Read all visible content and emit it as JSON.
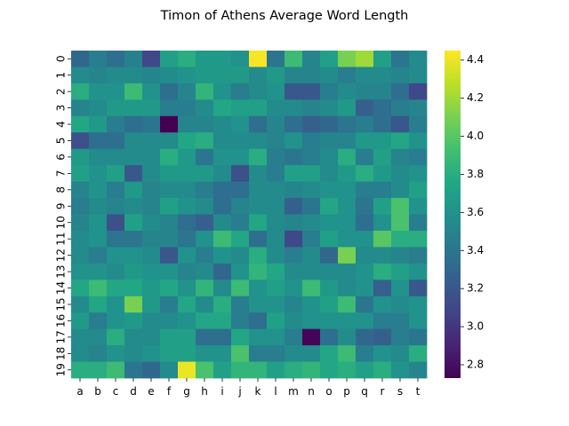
{
  "chart_data": {
    "type": "heatmap",
    "title": "Timon of Athens Average Word Length",
    "xlabel": "",
    "ylabel": "",
    "x_categories": [
      "a",
      "b",
      "c",
      "d",
      "e",
      "f",
      "g",
      "h",
      "i",
      "j",
      "k",
      "l",
      "m",
      "n",
      "o",
      "p",
      "q",
      "r",
      "s",
      "t"
    ],
    "y_categories": [
      "0",
      "1",
      "2",
      "3",
      "4",
      "5",
      "6",
      "7",
      "8",
      "9",
      "10",
      "11",
      "12",
      "13",
      "14",
      "15",
      "16",
      "17",
      "18",
      "19"
    ],
    "colormap": "viridis",
    "vmin": 2.73,
    "vmax": 4.45,
    "colorbar_ticks": [
      "2.8",
      "3.0",
      "3.2",
      "3.4",
      "3.6",
      "3.8",
      "4.0",
      "4.2",
      "4.4"
    ],
    "colorbar_tick_values": [
      2.8,
      3.0,
      3.2,
      3.4,
      3.6,
      3.8,
      4.0,
      4.2,
      4.4
    ],
    "grid": false,
    "values": [
      [
        3.3,
        3.45,
        3.35,
        3.48,
        3.1,
        3.7,
        3.8,
        3.65,
        3.65,
        3.6,
        4.43,
        3.4,
        3.9,
        3.5,
        3.7,
        4.1,
        4.2,
        3.7,
        3.4,
        3.55
      ],
      [
        3.55,
        3.5,
        3.55,
        3.55,
        3.5,
        3.55,
        3.6,
        3.65,
        3.65,
        3.65,
        3.55,
        3.65,
        3.5,
        3.5,
        3.55,
        3.45,
        3.55,
        3.55,
        3.5,
        3.55
      ],
      [
        3.8,
        3.6,
        3.6,
        3.9,
        3.6,
        3.35,
        3.5,
        3.85,
        3.6,
        3.45,
        3.55,
        3.6,
        3.2,
        3.2,
        3.45,
        3.55,
        3.5,
        3.5,
        3.35,
        3.1
      ],
      [
        3.5,
        3.55,
        3.65,
        3.65,
        3.65,
        3.45,
        3.45,
        3.55,
        3.75,
        3.7,
        3.7,
        3.55,
        3.55,
        3.5,
        3.55,
        3.65,
        3.25,
        3.35,
        3.45,
        3.5
      ],
      [
        3.75,
        3.65,
        3.45,
        3.35,
        3.4,
        2.73,
        3.5,
        3.5,
        3.55,
        3.6,
        3.35,
        3.5,
        3.35,
        3.25,
        3.3,
        3.4,
        3.45,
        3.35,
        3.2,
        3.45
      ],
      [
        3.15,
        3.35,
        3.35,
        3.55,
        3.55,
        3.55,
        3.75,
        3.8,
        3.55,
        3.55,
        3.55,
        3.5,
        3.6,
        3.45,
        3.5,
        3.5,
        3.65,
        3.65,
        3.75,
        3.6
      ],
      [
        3.65,
        3.55,
        3.55,
        3.55,
        3.55,
        3.8,
        3.65,
        3.4,
        3.6,
        3.6,
        3.8,
        3.45,
        3.4,
        3.45,
        3.55,
        3.8,
        3.45,
        3.7,
        3.5,
        3.45
      ],
      [
        3.7,
        3.6,
        3.7,
        3.2,
        3.55,
        3.65,
        3.65,
        3.65,
        3.55,
        3.15,
        3.55,
        3.45,
        3.7,
        3.7,
        3.55,
        3.65,
        3.8,
        3.65,
        3.55,
        3.6
      ],
      [
        3.5,
        3.6,
        3.45,
        3.65,
        3.5,
        3.55,
        3.55,
        3.45,
        3.35,
        3.35,
        3.55,
        3.55,
        3.5,
        3.55,
        3.6,
        3.6,
        3.45,
        3.45,
        3.55,
        3.7
      ],
      [
        3.45,
        3.55,
        3.5,
        3.55,
        3.5,
        3.7,
        3.6,
        3.55,
        3.35,
        3.5,
        3.55,
        3.55,
        3.25,
        3.4,
        3.75,
        3.6,
        3.4,
        3.7,
        3.95,
        3.6
      ],
      [
        3.5,
        3.6,
        3.15,
        3.7,
        3.55,
        3.5,
        3.35,
        3.25,
        3.55,
        3.45,
        3.75,
        3.55,
        3.5,
        3.55,
        3.6,
        3.6,
        3.35,
        3.6,
        3.95,
        3.45
      ],
      [
        3.55,
        3.6,
        3.4,
        3.4,
        3.5,
        3.5,
        3.4,
        3.6,
        3.9,
        3.75,
        3.35,
        3.55,
        3.1,
        3.45,
        3.7,
        3.6,
        3.6,
        4.0,
        3.8,
        3.8
      ],
      [
        3.55,
        3.45,
        3.6,
        3.6,
        3.55,
        3.2,
        3.6,
        3.45,
        3.6,
        3.55,
        3.8,
        3.55,
        3.45,
        3.55,
        3.3,
        4.1,
        3.55,
        3.55,
        3.5,
        3.45
      ],
      [
        3.6,
        3.6,
        3.55,
        3.65,
        3.6,
        3.6,
        3.5,
        3.55,
        3.3,
        3.6,
        3.85,
        3.75,
        3.55,
        3.55,
        3.55,
        3.55,
        3.6,
        3.8,
        3.7,
        3.6
      ],
      [
        3.75,
        3.9,
        3.75,
        3.75,
        3.65,
        3.75,
        3.6,
        3.85,
        3.55,
        3.9,
        3.6,
        3.7,
        3.6,
        3.9,
        3.65,
        3.55,
        3.6,
        3.25,
        3.6,
        3.2
      ],
      [
        3.55,
        3.75,
        3.6,
        4.1,
        3.65,
        3.45,
        3.75,
        3.55,
        3.8,
        3.45,
        3.6,
        3.6,
        3.5,
        3.6,
        3.7,
        3.9,
        3.4,
        3.6,
        3.55,
        3.6
      ],
      [
        3.65,
        3.45,
        3.6,
        3.65,
        3.55,
        3.55,
        3.6,
        3.75,
        3.75,
        3.45,
        3.35,
        3.7,
        3.55,
        3.6,
        3.6,
        3.6,
        3.6,
        3.45,
        3.45,
        3.6
      ],
      [
        3.55,
        3.55,
        3.8,
        3.55,
        3.55,
        3.7,
        3.7,
        3.35,
        3.35,
        3.75,
        3.6,
        3.6,
        3.45,
        2.75,
        3.35,
        3.55,
        3.3,
        3.25,
        3.45,
        3.4
      ],
      [
        3.55,
        3.5,
        3.6,
        3.55,
        3.6,
        3.7,
        3.7,
        3.6,
        3.6,
        3.95,
        3.45,
        3.45,
        3.55,
        3.55,
        3.75,
        3.9,
        3.45,
        3.6,
        3.55,
        3.8
      ],
      [
        3.8,
        3.8,
        3.9,
        3.4,
        3.3,
        3.55,
        4.4,
        3.95,
        3.7,
        3.85,
        3.85,
        3.7,
        3.8,
        3.85,
        3.75,
        3.8,
        3.7,
        3.8,
        3.6,
        3.5
      ]
    ]
  }
}
